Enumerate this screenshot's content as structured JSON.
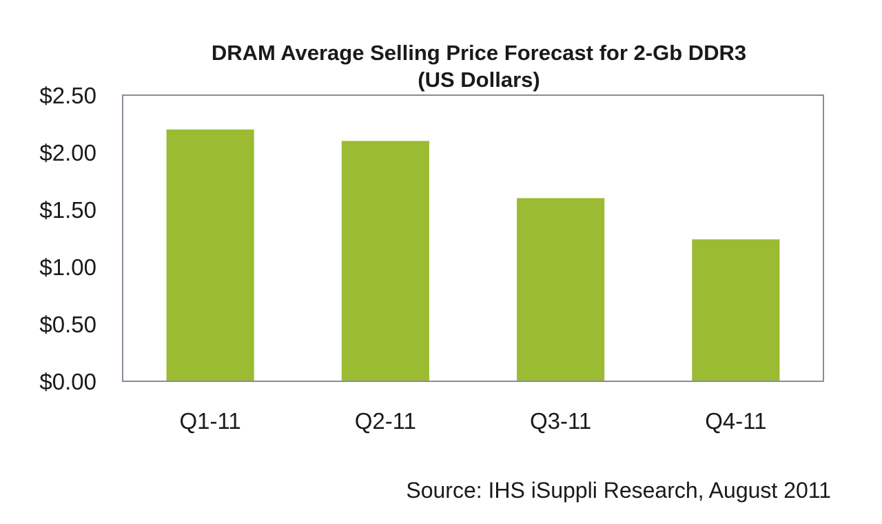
{
  "chart_data": {
    "type": "bar",
    "title": "DRAM Average Selling Price Forecast for 2-Gb DDR3",
    "subtitle": "(US Dollars)",
    "categories": [
      "Q1-11",
      "Q2-11",
      "Q3-11",
      "Q4-11"
    ],
    "values": [
      2.2,
      2.1,
      1.6,
      1.24
    ],
    "ylim": [
      0,
      2.5
    ],
    "yticks": [
      0,
      0.5,
      1.0,
      1.5,
      2.0,
      2.5
    ],
    "ytick_labels": [
      "$0.00",
      "$0.50",
      "$1.00",
      "$1.50",
      "$2.00",
      "$2.50"
    ],
    "xlabel": "",
    "ylabel": "",
    "grid": false,
    "legend": "none",
    "bar_color": "#9bbb33",
    "frame_color": "#8a8a9a",
    "source": "Source: IHS iSuppli Research, August 2011"
  }
}
